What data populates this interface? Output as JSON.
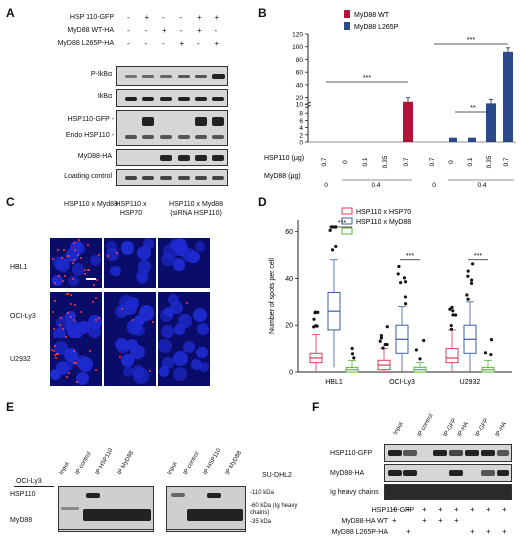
{
  "panels": {
    "A": "A",
    "B": "B",
    "C": "C",
    "D": "D",
    "E": "E",
    "F": "F"
  },
  "A": {
    "rows": [
      {
        "label": "HSP 110-GFP",
        "signs": [
          "-",
          "+",
          "-",
          "-",
          "+",
          "+"
        ]
      },
      {
        "label": "MyD88 WT-HA",
        "signs": [
          "-",
          "-",
          "+",
          "-",
          "+",
          "-"
        ]
      },
      {
        "label": "MyD88 L265P-HA",
        "signs": [
          "-",
          "-",
          "-",
          "+",
          "-",
          "+"
        ]
      }
    ],
    "blots": [
      "P-IkBα",
      "IkBα",
      "HSP110-GFP -",
      "Endo HSP110 -",
      "MyD88-HA",
      "Loading control"
    ]
  },
  "chart_data": [
    {
      "type": "bar",
      "panel": "B",
      "ylabel": "Luciferase signal relative to GFP transfection",
      "yticks": [
        "0",
        "2",
        "4",
        "6",
        "8",
        "10",
        "20",
        "40",
        "60",
        "80",
        "100",
        "120"
      ],
      "series": [
        {
          "name": "MyD88 WT",
          "color": "#b5123a",
          "x": [
            "0.7",
            "0",
            "0.1",
            "0.35",
            "0.7"
          ],
          "values": [
            0,
            0,
            0,
            0,
            13.5
          ]
        },
        {
          "name": "MyD88 L265P",
          "color": "#2b4a8c",
          "x": [
            "0.7",
            "0",
            "0.1",
            "0.35",
            "0.7"
          ],
          "values": [
            0,
            1.2,
            1.2,
            11,
            92
          ]
        }
      ],
      "xrow1_label": "HSP110 (μg)",
      "xrow2_label": "MyD88 (μg)",
      "xrow2_values": [
        "0",
        "0.4",
        "0",
        "0.4"
      ],
      "significance": [
        "***",
        "***",
        "**"
      ]
    },
    {
      "type": "box",
      "panel": "D",
      "ylabel": "Number of spots per cell",
      "yticks": [
        "0",
        "20",
        "40",
        "60"
      ],
      "categories": [
        "HBL1",
        "OCI-Ly3",
        "U2932"
      ],
      "series": [
        {
          "name": "HSP110 x HSP70",
          "color": "#d83a5a",
          "medians": [
            6,
            3,
            6
          ]
        },
        {
          "name": "HSP110 x MyD88",
          "color": "#3a5ca8",
          "medians": [
            26,
            14,
            14
          ]
        },
        {
          "name": "HSP110 x MyD88 siRNA HSP110",
          "color": "#5ab33a",
          "medians": [
            1,
            1,
            1
          ]
        }
      ],
      "significance": [
        "***",
        "***",
        "***"
      ]
    }
  ],
  "C": {
    "columns": [
      "HSP110 x Myd88",
      "HSP110 x HSP70",
      "HSP110 x Myd88 (siRNA HSP110)"
    ],
    "rows": [
      "HBL1",
      "OCI-Ly3",
      "U2932"
    ]
  },
  "E": {
    "cell_left": "OCI-Ly3",
    "cell_right": "SU-DHL2",
    "lanes": [
      "Input",
      "IP control",
      "IP HSP110",
      "IP MyD88"
    ],
    "rows": [
      "HSP110",
      "MyD88"
    ],
    "markers": [
      "-110 kDa",
      "-60 kDa (Ig heavy chains)",
      "-35 kDa"
    ]
  },
  "F": {
    "lanes": [
      "Input",
      "IP control",
      "IP-GFP",
      "IP-HA",
      "IP-GFP",
      "IP-HA"
    ],
    "rows": [
      "HSP110-GFP",
      "MyD88-HA",
      "Ig heavy chains"
    ],
    "sign_rows": [
      {
        "label": "HSP110-GFP",
        "signs": [
          "+",
          "+",
          "+",
          "+",
          "+",
          "+",
          "+",
          "+"
        ]
      },
      {
        "label": "MyD88-HA WT",
        "signs": [
          "+",
          "",
          "+",
          "+",
          "+",
          "",
          "",
          ""
        ]
      },
      {
        "label": "MyD88 L265P-HA",
        "signs": [
          "",
          "+",
          "",
          "",
          "",
          "+",
          "+",
          "+"
        ]
      }
    ]
  }
}
